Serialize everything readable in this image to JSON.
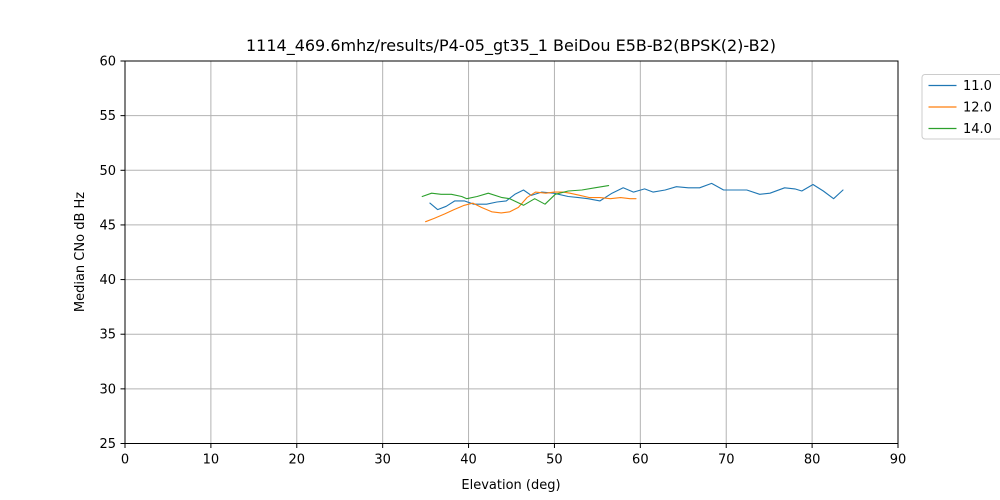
{
  "chart_data": {
    "type": "line",
    "title": "1114_469.6mhz/results/P4-05_gt35_1 BeiDou E5B-B2(BPSK(2)-B2)",
    "xlabel": "Elevation (deg)",
    "ylabel": "Median CNo dB Hz",
    "xlim": [
      0,
      90
    ],
    "ylim": [
      25,
      60
    ],
    "xticks": [
      0,
      10,
      20,
      30,
      40,
      50,
      60,
      70,
      80,
      90
    ],
    "yticks": [
      25,
      30,
      35,
      40,
      45,
      50,
      55,
      60
    ],
    "grid": true,
    "grid_color": "#b3b3b3",
    "spine_color": "#000000",
    "legend_position": "upper-right-outside",
    "legend_border_color": "#cccccc",
    "series": [
      {
        "name": "11.0",
        "color": "#1f77b4",
        "points": [
          [
            35.5,
            47.0
          ],
          [
            36.4,
            46.4
          ],
          [
            37.4,
            46.7
          ],
          [
            38.4,
            47.2
          ],
          [
            39.5,
            47.2
          ],
          [
            40.6,
            46.9
          ],
          [
            42.1,
            46.9
          ],
          [
            43.3,
            47.1
          ],
          [
            44.4,
            47.2
          ],
          [
            45.4,
            47.8
          ],
          [
            46.4,
            48.2
          ],
          [
            47.3,
            47.7
          ],
          [
            48.5,
            48.0
          ],
          [
            49.9,
            47.9
          ],
          [
            51.6,
            47.6
          ],
          [
            52.8,
            47.5
          ],
          [
            53.9,
            47.4
          ],
          [
            55.3,
            47.2
          ],
          [
            56.7,
            47.9
          ],
          [
            58.0,
            48.4
          ],
          [
            59.2,
            48.0
          ],
          [
            60.5,
            48.3
          ],
          [
            61.5,
            48.0
          ],
          [
            62.9,
            48.2
          ],
          [
            64.2,
            48.5
          ],
          [
            65.6,
            48.4
          ],
          [
            66.9,
            48.4
          ],
          [
            68.3,
            48.8
          ],
          [
            69.7,
            48.2
          ],
          [
            71.0,
            48.2
          ],
          [
            72.4,
            48.2
          ],
          [
            73.9,
            47.8
          ],
          [
            75.1,
            47.9
          ],
          [
            76.8,
            48.4
          ],
          [
            78.0,
            48.3
          ],
          [
            78.8,
            48.1
          ],
          [
            80.1,
            48.7
          ],
          [
            81.3,
            48.1
          ],
          [
            82.5,
            47.4
          ],
          [
            83.6,
            48.2
          ]
        ]
      },
      {
        "name": "12.0",
        "color": "#ff7f0e",
        "points": [
          [
            35.0,
            45.3
          ],
          [
            36.0,
            45.6
          ],
          [
            37.2,
            46.0
          ],
          [
            38.3,
            46.4
          ],
          [
            39.5,
            46.8
          ],
          [
            40.5,
            47.0
          ],
          [
            41.5,
            46.6
          ],
          [
            42.7,
            46.2
          ],
          [
            43.8,
            46.1
          ],
          [
            44.8,
            46.2
          ],
          [
            45.8,
            46.6
          ],
          [
            46.8,
            47.5
          ],
          [
            47.8,
            48.0
          ],
          [
            49.0,
            47.9
          ],
          [
            50.0,
            48.0
          ],
          [
            51.0,
            48.0
          ],
          [
            51.8,
            47.9
          ],
          [
            53.0,
            47.7
          ],
          [
            54.1,
            47.5
          ],
          [
            55.3,
            47.5
          ],
          [
            56.5,
            47.4
          ],
          [
            57.7,
            47.5
          ],
          [
            58.8,
            47.4
          ],
          [
            59.5,
            47.4
          ]
        ]
      },
      {
        "name": "14.0",
        "color": "#2ca02c",
        "points": [
          [
            34.6,
            47.6
          ],
          [
            35.7,
            47.9
          ],
          [
            36.8,
            47.8
          ],
          [
            38.0,
            47.8
          ],
          [
            39.2,
            47.6
          ],
          [
            39.8,
            47.4
          ],
          [
            41.0,
            47.6
          ],
          [
            42.3,
            47.9
          ],
          [
            43.9,
            47.5
          ],
          [
            44.8,
            47.4
          ],
          [
            46.4,
            46.8
          ],
          [
            47.7,
            47.4
          ],
          [
            48.9,
            46.9
          ],
          [
            50.1,
            47.8
          ],
          [
            51.6,
            48.1
          ],
          [
            53.2,
            48.2
          ],
          [
            54.7,
            48.4
          ],
          [
            56.3,
            48.6
          ]
        ]
      }
    ]
  }
}
